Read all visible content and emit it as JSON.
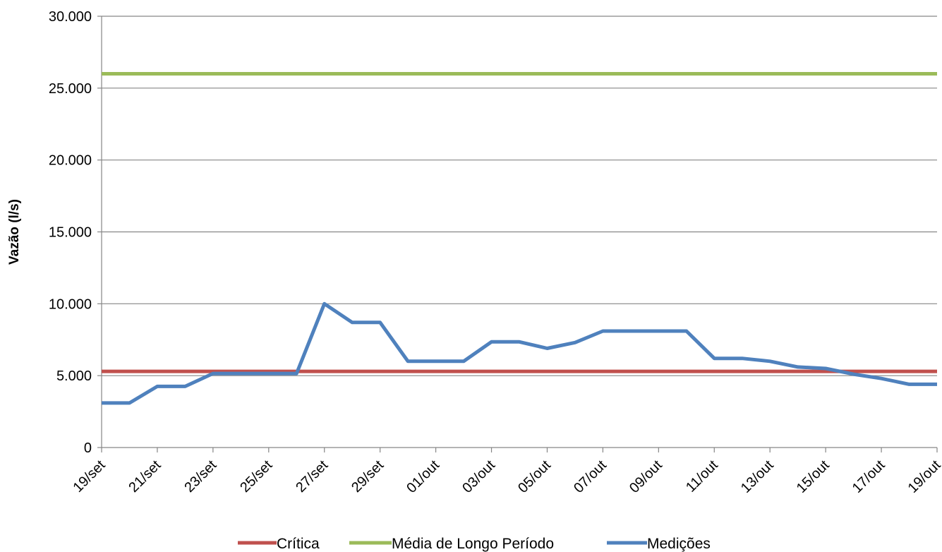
{
  "chart_data": {
    "type": "line",
    "ylabel": "Vazão (l/s)",
    "xlabel": "",
    "title": "",
    "ylim": [
      0,
      30000
    ],
    "y_ticks": [
      {
        "value": 0,
        "label": "0"
      },
      {
        "value": 5000,
        "label": "5.000"
      },
      {
        "value": 10000,
        "label": "10.000"
      },
      {
        "value": 15000,
        "label": "15.000"
      },
      {
        "value": 20000,
        "label": "20.000"
      },
      {
        "value": 25000,
        "label": "25.000"
      },
      {
        "value": 30000,
        "label": "30.000"
      }
    ],
    "x_dates": [
      "19/set",
      "20/set",
      "21/set",
      "22/set",
      "23/set",
      "24/set",
      "25/set",
      "26/set",
      "27/set",
      "28/set",
      "29/set",
      "30/set",
      "01/out",
      "02/out",
      "03/out",
      "04/out",
      "05/out",
      "06/out",
      "07/out",
      "08/out",
      "09/out",
      "10/out",
      "11/out",
      "12/out",
      "13/out",
      "14/out",
      "15/out",
      "16/out",
      "17/out",
      "18/out",
      "19/out"
    ],
    "x_tick_labels": [
      "19/set",
      "21/set",
      "23/set",
      "25/set",
      "27/set",
      "29/set",
      "01/out",
      "03/out",
      "05/out",
      "07/out",
      "09/out",
      "11/out",
      "13/out",
      "15/out",
      "17/out",
      "19/out"
    ],
    "gridlines": "horizontal",
    "legend_position": "bottom",
    "series": [
      {
        "name": "Crítica",
        "color": "#C0504D",
        "values": [
          5300,
          5300,
          5300,
          5300,
          5300,
          5300,
          5300,
          5300,
          5300,
          5300,
          5300,
          5300,
          5300,
          5300,
          5300,
          5300,
          5300,
          5300,
          5300,
          5300,
          5300,
          5300,
          5300,
          5300,
          5300,
          5300,
          5300,
          5300,
          5300,
          5300,
          5300
        ]
      },
      {
        "name": "Média de Longo Período",
        "color": "#9BBB59",
        "values": [
          26000,
          26000,
          26000,
          26000,
          26000,
          26000,
          26000,
          26000,
          26000,
          26000,
          26000,
          26000,
          26000,
          26000,
          26000,
          26000,
          26000,
          26000,
          26000,
          26000,
          26000,
          26000,
          26000,
          26000,
          26000,
          26000,
          26000,
          26000,
          26000,
          26000,
          26000
        ]
      },
      {
        "name": "Medições",
        "color": "#4F81BD",
        "values": [
          3100,
          3100,
          4250,
          4250,
          5150,
          5150,
          5150,
          5150,
          10000,
          8700,
          8700,
          6000,
          6000,
          6000,
          7350,
          7350,
          6900,
          7300,
          8100,
          8100,
          8100,
          8100,
          6200,
          6200,
          6000,
          5600,
          5500,
          5100,
          4800,
          4400,
          4400
        ]
      }
    ]
  }
}
